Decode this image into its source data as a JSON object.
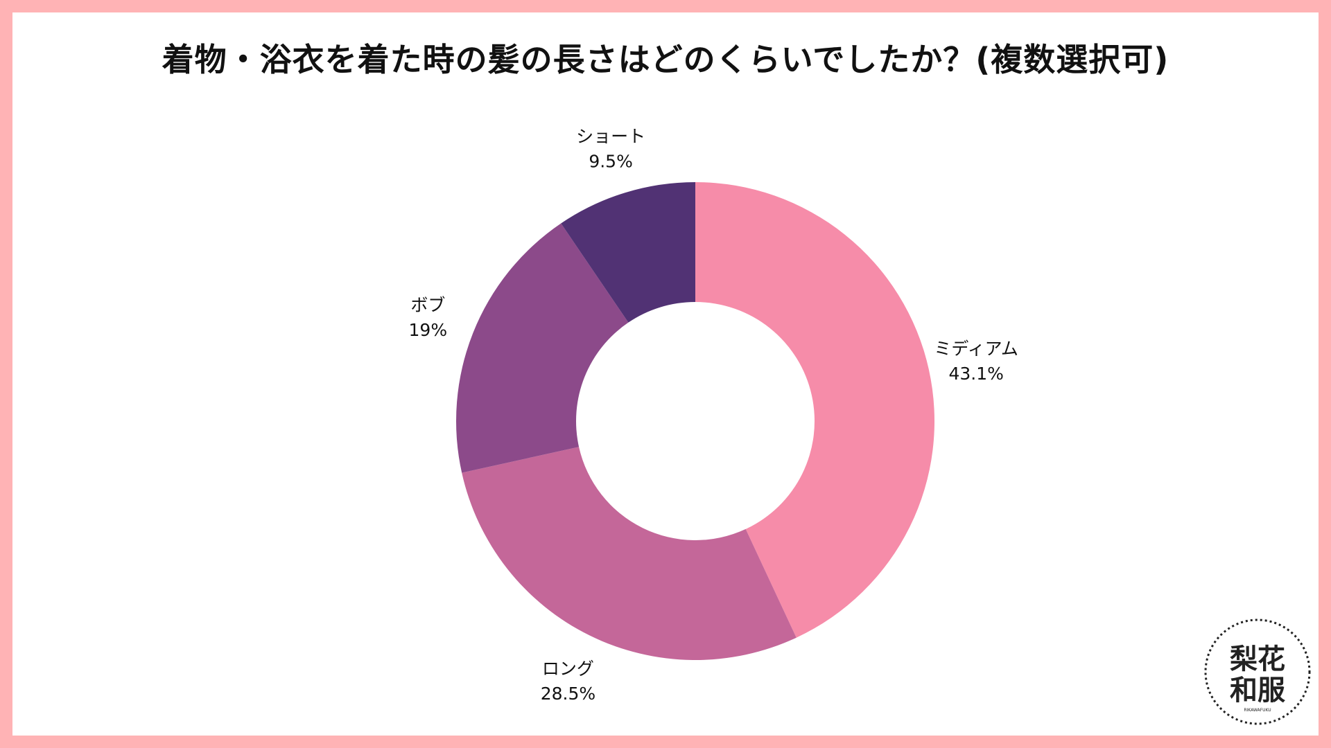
{
  "chart_data": {
    "type": "pie",
    "variant": "donut",
    "title": "着物・浴衣を着た時の髪の長さはどのくらいでしたか？(複数選択可)",
    "categories": [
      "ミディアム",
      "ロング",
      "ボブ",
      "ショート"
    ],
    "values": [
      43.1,
      28.5,
      19,
      9.5
    ],
    "value_labels": [
      "43.1%",
      "28.5%",
      "19%",
      "9.5%"
    ],
    "unit": "%",
    "start_angle": "12 o'clock",
    "direction": "clockwise",
    "legend": "none (labels outside slices)"
  },
  "colors": {
    "border": "#ffb3b5",
    "slices": [
      "#f68ca9",
      "#c46799",
      "#8c4a8a",
      "#513274"
    ],
    "text": "#111111"
  },
  "logo": {
    "main_text": "梨花和服",
    "sub_text": "RIKAWAFUKU"
  }
}
